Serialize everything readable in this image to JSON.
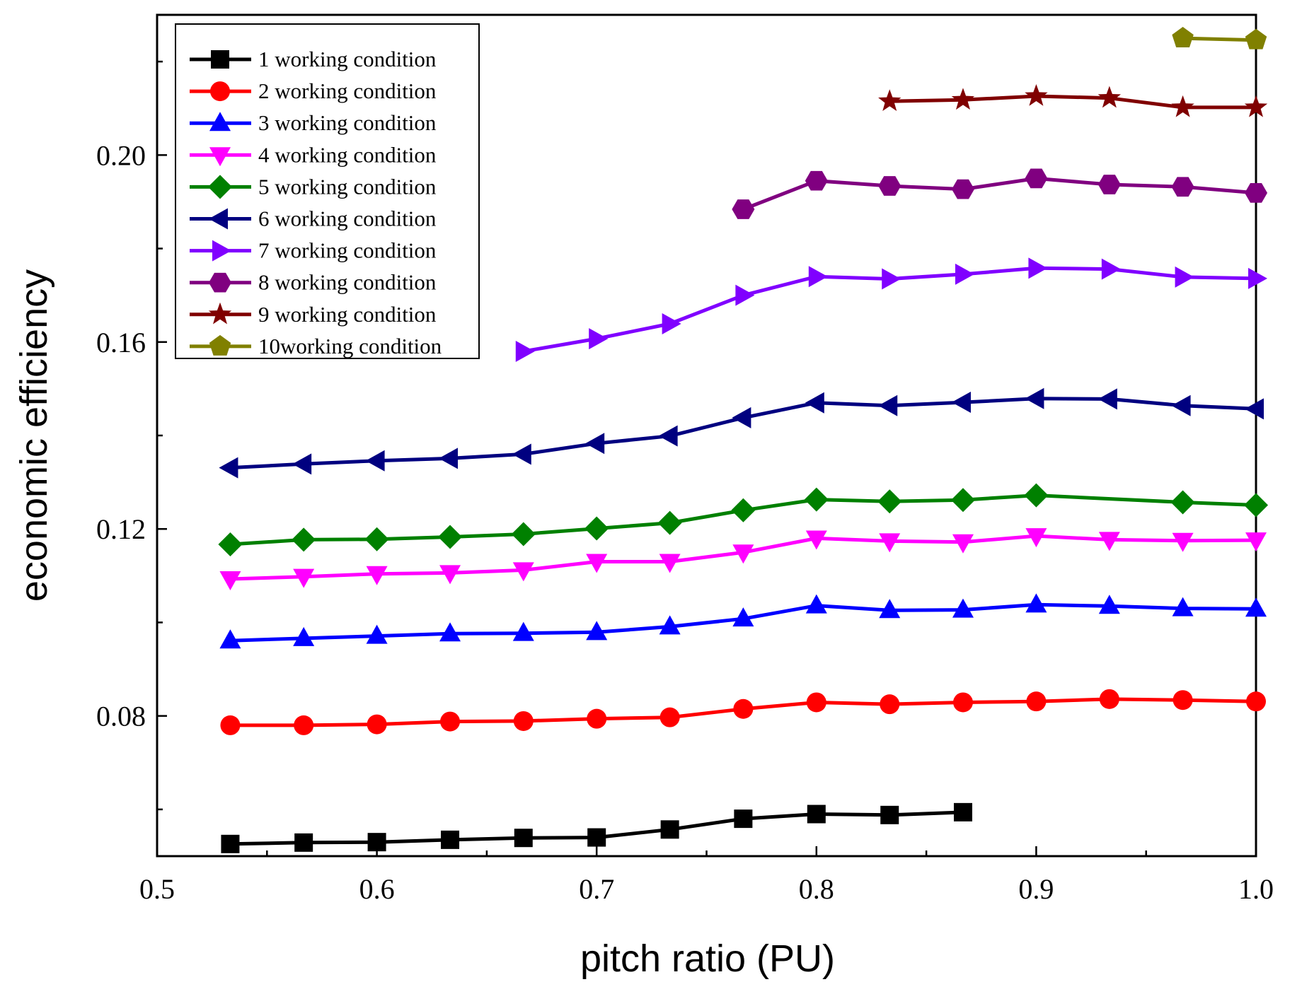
{
  "chart_data": {
    "type": "line",
    "title": "",
    "xlabel": "pitch ratio (PU)",
    "ylabel": "economic efficiency",
    "xlim": [
      0.5,
      1.0
    ],
    "ylim": [
      0.05,
      0.23
    ],
    "xticks": [
      0.5,
      0.6,
      0.7,
      0.8,
      0.9,
      1.0
    ],
    "xtick_labels": [
      "0.5",
      "0.6",
      "0.7",
      "0.8",
      "0.9",
      "1.0"
    ],
    "yticks": [
      0.08,
      0.12,
      0.16,
      0.2
    ],
    "ytick_labels": [
      "0.08",
      "0.12",
      "0.16",
      "0.20"
    ],
    "x_minor_ticks": [
      0.55,
      0.65,
      0.75,
      0.85,
      0.95
    ],
    "y_minor_ticks": [
      0.06,
      0.1,
      0.14,
      0.18,
      0.22
    ],
    "grid": false,
    "legend_position": "top-left",
    "series": [
      {
        "name": "1 working condition",
        "color": "#000000",
        "marker": "square",
        "x": [
          0.5333,
          0.5667,
          0.6,
          0.6333,
          0.6667,
          0.7,
          0.7333,
          0.7667,
          0.8,
          0.8333,
          0.8667
        ],
        "y": [
          0.0526,
          0.0529,
          0.053,
          0.0535,
          0.0539,
          0.054,
          0.0557,
          0.058,
          0.059,
          0.0588,
          0.0594
        ]
      },
      {
        "name": "2 working condition",
        "color": "#ff0000",
        "marker": "circle",
        "x": [
          0.5333,
          0.5667,
          0.6,
          0.6333,
          0.6667,
          0.7,
          0.7333,
          0.7667,
          0.8,
          0.8333,
          0.8667,
          0.9,
          0.9333,
          0.9667,
          1.0
        ],
        "y": [
          0.078,
          0.078,
          0.0782,
          0.0788,
          0.0789,
          0.0794,
          0.0797,
          0.0815,
          0.0829,
          0.0825,
          0.0829,
          0.0831,
          0.0836,
          0.0834,
          0.0831
        ]
      },
      {
        "name": "3 working condition",
        "color": "#0000ff",
        "marker": "triangle-up",
        "x": [
          0.5333,
          0.5667,
          0.6,
          0.6333,
          0.6667,
          0.7,
          0.7333,
          0.7667,
          0.8,
          0.8333,
          0.8667,
          0.9,
          0.9333,
          0.9667,
          1.0
        ],
        "y": [
          0.0961,
          0.0966,
          0.0971,
          0.0976,
          0.0977,
          0.0979,
          0.0991,
          0.1008,
          0.1036,
          0.1026,
          0.1027,
          0.1038,
          0.1035,
          0.103,
          0.1029
        ]
      },
      {
        "name": "4 working condition",
        "color": "#ff00ff",
        "marker": "triangle-down",
        "x": [
          0.5333,
          0.5667,
          0.6,
          0.6333,
          0.6667,
          0.7,
          0.7333,
          0.7667,
          0.8,
          0.8333,
          0.8667,
          0.9,
          0.9333,
          0.9667,
          1.0
        ],
        "y": [
          0.1093,
          0.1098,
          0.1104,
          0.1106,
          0.1112,
          0.113,
          0.113,
          0.115,
          0.118,
          0.1174,
          0.1172,
          0.1185,
          0.1177,
          0.1175,
          0.1176
        ]
      },
      {
        "name": "5 working condition",
        "color": "#008000",
        "marker": "diamond",
        "x": [
          0.5333,
          0.5667,
          0.6,
          0.6333,
          0.6667,
          0.7,
          0.7333,
          0.7667,
          0.8,
          0.8333,
          0.8667,
          0.9,
          0.9667,
          1.0
        ],
        "y": [
          0.1167,
          0.1177,
          0.1178,
          0.1183,
          0.1189,
          0.1201,
          0.1213,
          0.124,
          0.1263,
          0.1259,
          0.1262,
          0.1272,
          0.1257,
          0.1251
        ]
      },
      {
        "name": "6 working condition",
        "color": "#000080",
        "marker": "triangle-left",
        "x": [
          0.5333,
          0.5667,
          0.6,
          0.6333,
          0.6667,
          0.7,
          0.7333,
          0.7667,
          0.8,
          0.8333,
          0.8667,
          0.9,
          0.9333,
          0.9667,
          1.0
        ],
        "y": [
          0.1331,
          0.1339,
          0.1346,
          0.1351,
          0.136,
          0.1383,
          0.1399,
          0.1438,
          0.147,
          0.1464,
          0.1471,
          0.1479,
          0.1478,
          0.1464,
          0.1457
        ]
      },
      {
        "name": "7 working condition",
        "color": "#8000ff",
        "marker": "triangle-right",
        "x": [
          0.6667,
          0.7,
          0.7333,
          0.7667,
          0.8,
          0.8333,
          0.8667,
          0.9,
          0.9333,
          0.9667,
          1.0
        ],
        "y": [
          0.158,
          0.1607,
          0.1639,
          0.17,
          0.174,
          0.1735,
          0.1745,
          0.1758,
          0.1756,
          0.1739,
          0.1736
        ]
      },
      {
        "name": "8 working condition",
        "color": "#800080",
        "marker": "hexagon",
        "x": [
          0.7667,
          0.8,
          0.8333,
          0.8667,
          0.9,
          0.9333,
          0.9667,
          1.0
        ],
        "y": [
          0.1884,
          0.1945,
          0.1934,
          0.1927,
          0.195,
          0.1937,
          0.1932,
          0.1919
        ]
      },
      {
        "name": "9 working condition",
        "color": "#800000",
        "marker": "star",
        "x": [
          0.8333,
          0.8667,
          0.9,
          0.9333,
          0.9667,
          1.0
        ],
        "y": [
          0.2115,
          0.2118,
          0.2126,
          0.2122,
          0.2102,
          0.2102
        ]
      },
      {
        "name": "10working condition",
        "color": "#808000",
        "marker": "pentagon",
        "x": [
          0.9667,
          1.0
        ],
        "y": [
          0.225,
          0.2246
        ]
      }
    ]
  }
}
